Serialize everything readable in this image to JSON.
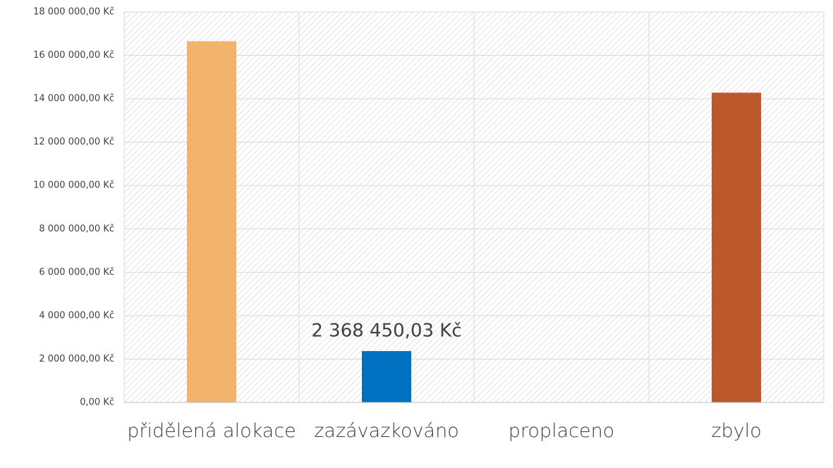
{
  "chart_data": {
    "type": "bar",
    "categories": [
      "přidělená alokace",
      "zazávazkováno",
      "proplaceno",
      "zbylo"
    ],
    "values": [
      16650000,
      2368450.03,
      0,
      14280000
    ],
    "value_labels": [
      null,
      "2 368 450,03 Kč",
      null,
      null
    ],
    "colors": [
      "#f2b46d",
      "#0070c0",
      "#a5a5a5",
      "#bb592c"
    ],
    "ylim": [
      0,
      18000000
    ],
    "yticks": [
      {
        "value": 0,
        "label": "0,00 Kč"
      },
      {
        "value": 2000000,
        "label": "2 000 000,00 Kč"
      },
      {
        "value": 4000000,
        "label": "4 000 000,00 Kč"
      },
      {
        "value": 6000000,
        "label": "6 000 000,00 Kč"
      },
      {
        "value": 8000000,
        "label": "8 000 000,00 Kč"
      },
      {
        "value": 10000000,
        "label": "10 000 000,00 Kč"
      },
      {
        "value": 12000000,
        "label": "12 000 000,00 Kč"
      },
      {
        "value": 14000000,
        "label": "14 000 000,00 Kč"
      },
      {
        "value": 16000000,
        "label": "16 000 000,00 Kč"
      },
      {
        "value": 18000000,
        "label": "18 000 000,00 Kč"
      }
    ],
    "grid": true
  }
}
